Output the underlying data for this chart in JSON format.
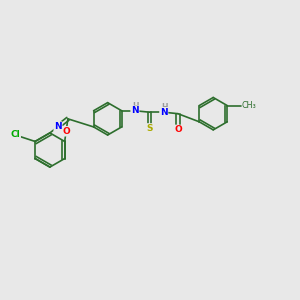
{
  "background_color": "#e8e8e8",
  "bond_color": "#2d6e2d",
  "atom_colors": {
    "Cl": "#00aa00",
    "N": "#0000ff",
    "O": "#ff0000",
    "S": "#aaaa00",
    "C": "#2d6e2d",
    "H": "#999999"
  },
  "figsize": [
    3.0,
    3.0
  ],
  "dpi": 100
}
